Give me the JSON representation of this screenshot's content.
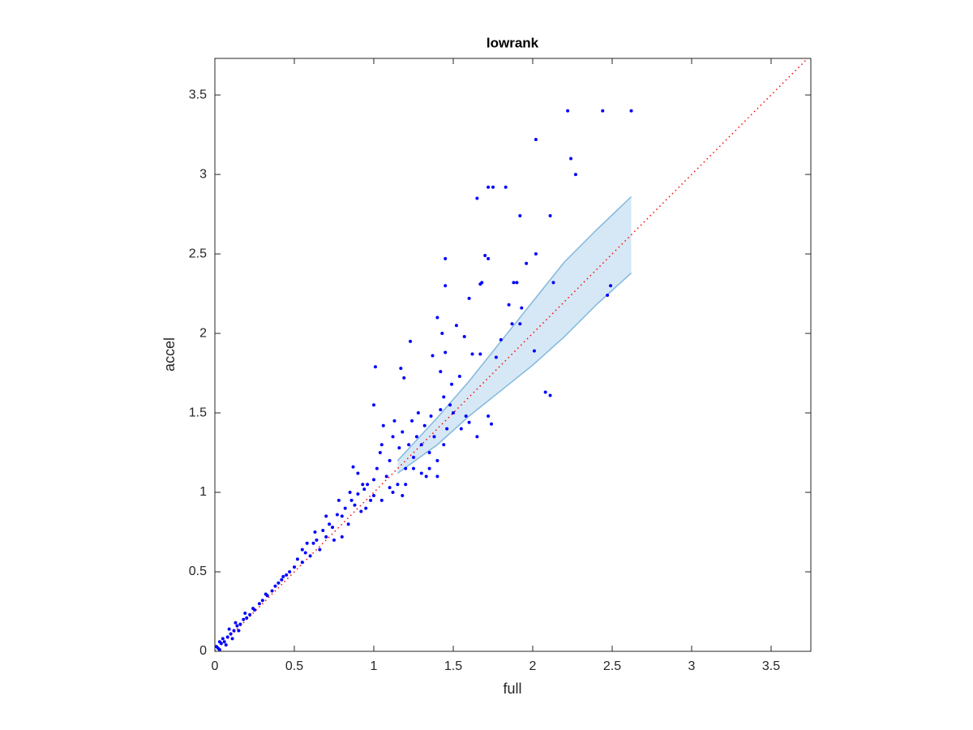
{
  "chart_data": {
    "type": "scatter",
    "title": "lowrank",
    "x_label": "full",
    "y_label": "accel",
    "xlim": [
      0,
      3.75
    ],
    "ylim": [
      0,
      3.73
    ],
    "xticks": [
      0,
      0.5,
      1,
      1.5,
      2,
      2.5,
      3,
      3.5
    ],
    "yticks": [
      0,
      0.5,
      1,
      1.5,
      2,
      2.5,
      3,
      3.5
    ],
    "band": {
      "x": [
        1.15,
        1.4,
        1.6,
        1.8,
        2.0,
        2.2,
        2.4,
        2.62
      ],
      "upper": [
        1.2,
        1.47,
        1.7,
        1.95,
        2.2,
        2.45,
        2.65,
        2.86
      ],
      "lower": [
        1.12,
        1.3,
        1.48,
        1.64,
        1.8,
        1.98,
        2.18,
        2.38
      ],
      "fill": "#d6e8f5",
      "stroke": "#82b8dc"
    },
    "reference_line": {
      "x": [
        0,
        3.73
      ],
      "y": [
        0,
        3.73
      ],
      "color": "#ff0000"
    },
    "series": [
      {
        "color": "#0000ff",
        "x": [
          2.22,
          2.44,
          2.62,
          2.02,
          2.24,
          2.27,
          1.72,
          1.75,
          1.83,
          1.65,
          1.92,
          2.11,
          1.7,
          1.72,
          1.45,
          1.96,
          2.02,
          1.67,
          1.68,
          1.88,
          1.9,
          1.45,
          2.13,
          1.6,
          1.85,
          1.93,
          1.87,
          2.49,
          2.47,
          1.4,
          1.52,
          1.43,
          1.57,
          1.23,
          1.92,
          1.8,
          2.01,
          1.62,
          1.67,
          1.77,
          1.45,
          1.37,
          1.01,
          1.17,
          1.42,
          1.19,
          1.54,
          1.49,
          2.08,
          2.11,
          1.0,
          1.44,
          1.5,
          1.58,
          1.6,
          1.72,
          1.74,
          1.65,
          1.55,
          0.02,
          0.04,
          0.06,
          0.08,
          0.1,
          0.12,
          0.14,
          0.16,
          0.18,
          0.2,
          0.22,
          0.25,
          0.28,
          0.3,
          0.33,
          0.36,
          0.38,
          0.4,
          0.42,
          0.45,
          0.47,
          0.5,
          0.03,
          0.07,
          0.11,
          0.15,
          0.05,
          0.09,
          0.13,
          0.19,
          0.01,
          0.03,
          0.24,
          0.32,
          0.43,
          0.52,
          0.55,
          0.57,
          0.6,
          0.62,
          0.64,
          0.66,
          0.68,
          0.7,
          0.72,
          0.74,
          0.75,
          0.77,
          0.8,
          0.82,
          0.84,
          0.86,
          0.88,
          0.9,
          0.92,
          0.94,
          0.96,
          0.98,
          1.0,
          0.85,
          0.9,
          0.87,
          0.93,
          0.78,
          0.7,
          0.63,
          0.58,
          0.55,
          0.8,
          0.95,
          1.0,
          1.02,
          1.04,
          1.05,
          1.06,
          1.08,
          1.1,
          1.12,
          1.13,
          1.15,
          1.16,
          1.18,
          1.2,
          1.22,
          1.24,
          1.25,
          1.27,
          1.28,
          1.3,
          1.32,
          1.33,
          1.35,
          1.36,
          1.38,
          1.4,
          1.42,
          1.44,
          1.46,
          1.48,
          1.1,
          1.2,
          1.3,
          1.05,
          1.12,
          1.25,
          1.18,
          1.35,
          1.4
        ],
        "y": [
          3.4,
          3.4,
          3.4,
          3.22,
          3.1,
          3.0,
          2.92,
          2.92,
          2.92,
          2.85,
          2.74,
          2.74,
          2.49,
          2.47,
          2.47,
          2.44,
          2.5,
          2.31,
          2.32,
          2.32,
          2.32,
          2.3,
          2.32,
          2.22,
          2.18,
          2.16,
          2.06,
          2.3,
          2.24,
          2.1,
          2.05,
          2.0,
          1.98,
          1.95,
          2.06,
          1.96,
          1.89,
          1.87,
          1.87,
          1.85,
          1.88,
          1.86,
          1.79,
          1.78,
          1.76,
          1.72,
          1.73,
          1.68,
          1.63,
          1.61,
          1.55,
          1.6,
          1.5,
          1.48,
          1.44,
          1.48,
          1.43,
          1.35,
          1.4,
          0.02,
          0.05,
          0.06,
          0.09,
          0.11,
          0.13,
          0.16,
          0.17,
          0.2,
          0.21,
          0.23,
          0.26,
          0.3,
          0.32,
          0.35,
          0.38,
          0.41,
          0.43,
          0.45,
          0.48,
          0.5,
          0.53,
          0.01,
          0.04,
          0.08,
          0.13,
          0.08,
          0.14,
          0.18,
          0.24,
          0.03,
          0.06,
          0.27,
          0.36,
          0.47,
          0.58,
          0.56,
          0.62,
          0.6,
          0.68,
          0.7,
          0.64,
          0.76,
          0.72,
          0.8,
          0.78,
          0.7,
          0.86,
          0.85,
          0.9,
          0.8,
          0.95,
          0.92,
          0.99,
          0.88,
          1.02,
          1.05,
          0.95,
          1.08,
          1.0,
          1.12,
          1.16,
          1.05,
          0.95,
          0.85,
          0.75,
          0.68,
          0.64,
          0.72,
          0.9,
          0.98,
          1.15,
          1.25,
          1.3,
          1.42,
          1.1,
          1.2,
          1.35,
          1.45,
          1.05,
          1.28,
          1.38,
          1.15,
          1.3,
          1.45,
          1.22,
          1.35,
          1.5,
          1.3,
          1.42,
          1.1,
          1.25,
          1.48,
          1.35,
          1.2,
          1.52,
          1.3,
          1.4,
          1.55,
          1.03,
          1.05,
          1.12,
          0.95,
          1.0,
          1.15,
          0.98,
          1.15,
          1.1
        ]
      }
    ]
  }
}
